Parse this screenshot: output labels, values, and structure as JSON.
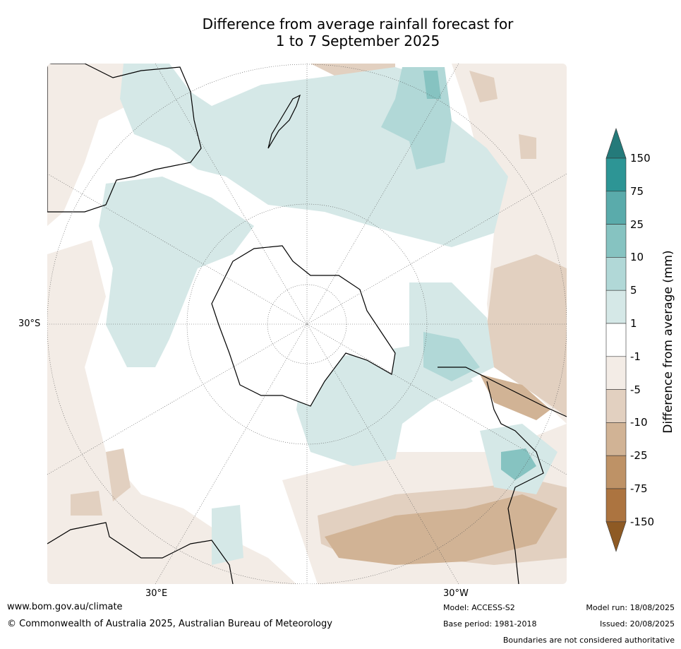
{
  "title_line1": "Difference from average rainfall forecast for",
  "title_line2": "1 to 7 September 2025",
  "map": {
    "projection": "south-polar-stereographic",
    "lat_labels": [
      "30°S"
    ],
    "lon_labels": [
      "30°E",
      "30°W"
    ]
  },
  "colorbar": {
    "label": "Difference from average (mm)",
    "ticks": [
      "150",
      "75",
      "25",
      "10",
      "5",
      "1",
      "-1",
      "-5",
      "-10",
      "-25",
      "-75",
      "-150"
    ],
    "colors": [
      "#2d9595",
      "#5aabab",
      "#86c3c1",
      "#b1d8d7",
      "#d5e8e7",
      "#ffffff",
      "#f3ece6",
      "#e2d0c0",
      "#d1b395",
      "#be9266",
      "#ac7440"
    ],
    "over_color": "#247a7a",
    "under_color": "#8e5a24"
  },
  "footer": {
    "website": "www.bom.gov.au/climate",
    "copyright": "© Commonwealth of Australia 2025, Australian Bureau of Meteorology",
    "model": "Model: ACCESS-S2",
    "base_period": "Base period: 1981-2018",
    "model_run": "Model run: 18/08/2025",
    "issued": "Issued: 20/08/2025",
    "disclaimer": "Boundaries are not considered authoritative"
  }
}
